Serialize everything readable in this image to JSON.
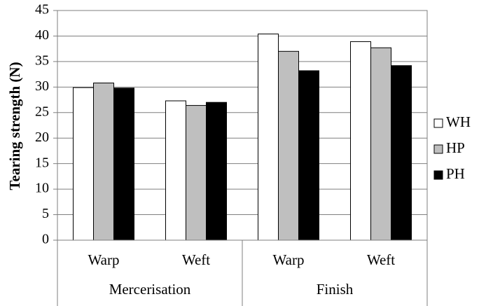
{
  "chart_data": {
    "type": "bar",
    "title": "",
    "xlabel": "",
    "ylabel": "Tearing strength (N)",
    "ylim": [
      0,
      45
    ],
    "yticks": [
      0,
      5,
      10,
      15,
      20,
      25,
      30,
      35,
      40,
      45
    ],
    "grid": true,
    "legend_position": "right",
    "groups": [
      {
        "label": "Mercerisation",
        "categories": [
          "Warp",
          "Weft"
        ]
      },
      {
        "label": "Finish",
        "categories": [
          "Warp",
          "Weft"
        ]
      }
    ],
    "categories": [
      "Warp",
      "Weft",
      "Warp",
      "Weft"
    ],
    "series": [
      {
        "name": "WH",
        "color": "#ffffff",
        "values": [
          29.9,
          27.3,
          40.4,
          38.9
        ]
      },
      {
        "name": "HP",
        "color": "#bfbfbf",
        "values": [
          30.8,
          26.4,
          37.0,
          37.7
        ]
      },
      {
        "name": "PH",
        "color": "#000000",
        "values": [
          29.8,
          27.0,
          33.2,
          34.2
        ]
      }
    ]
  }
}
